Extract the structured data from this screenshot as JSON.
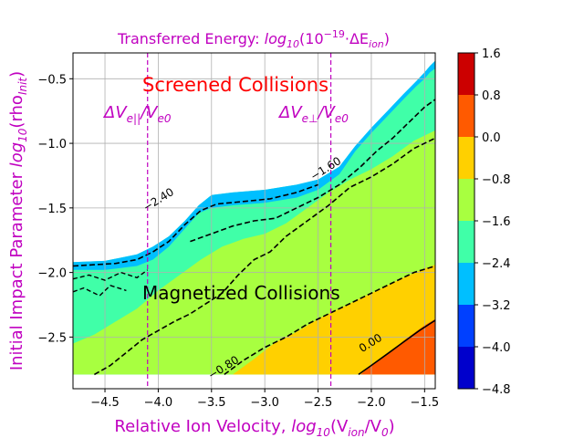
{
  "chart_data": {
    "type": "contour",
    "title": "Transferred Energy: log10(10^-19 · ΔE_ion)",
    "title_parts": {
      "prefix": "Transferred Energy: ",
      "main": "log",
      "sub": "10",
      "rest": "(10",
      "sup": "−19",
      "end": "·ΔE",
      "sub2": "ion",
      "close": ")"
    },
    "xlabel": {
      "prefix": "Relative Ion Velocity,  ",
      "main": "log",
      "sub": "10",
      "rest": "(V",
      "sub2": "ion",
      "mid": "/V",
      "sub3": "0",
      "close": ")"
    },
    "ylabel": {
      "prefix": "Initial Impact Parameter ",
      "main": "log",
      "sub": "10",
      "rest": "(rho",
      "sub2": "Init",
      "close": ")"
    },
    "xlim": [
      -4.8,
      -1.4
    ],
    "ylim": [
      -2.9,
      -0.3
    ],
    "xticks": [
      -4.5,
      -4.0,
      -3.5,
      -3.0,
      -2.5,
      -2.0,
      -1.5
    ],
    "xtick_labels": [
      "−4.5",
      "−4.0",
      "−3.5",
      "−3.0",
      "−2.5",
      "−2.0",
      "−1.5"
    ],
    "yticks": [
      -2.5,
      -2.0,
      -1.5,
      -1.0,
      -0.5
    ],
    "ytick_labels": [
      "−2.5",
      "−2.0",
      "−1.5",
      "−1.0",
      "−0.5"
    ],
    "grid": true,
    "vertical_lines": [
      -4.1,
      -2.38
    ],
    "annotations": {
      "screened": "Screened Collisions",
      "magnetized": "Magnetized Collisions",
      "dv_parallel": "ΔV",
      "dv_parallel_sub": "e||",
      "dv_parallel_rest": "/V",
      "dv_parallel_sub2": "e0",
      "dv_perp": "ΔV",
      "dv_perp_sub": "e⊥",
      "dv_perp_rest": "/V",
      "dv_perp_sub2": "e0"
    },
    "contour_labels": [
      {
        "text": "−2.40",
        "x": -3.98,
        "y": -1.46
      },
      {
        "text": "−0.80",
        "x": -3.37,
        "y": -2.76
      },
      {
        "text": "0.00",
        "x": -1.99,
        "y": -2.57
      },
      {
        "text": "−1.60",
        "x": -2.41,
        "y": -1.22
      }
    ],
    "colorbar": {
      "levels": [
        -4.8,
        -4.0,
        -3.2,
        -2.4,
        -1.6,
        -0.8,
        0.0,
        0.8,
        1.6
      ],
      "tick_labels": [
        "−4.8",
        "−4.0",
        "−3.2",
        "−2.4",
        "−1.6",
        "−0.8",
        "0.0",
        "0.8",
        "1.6"
      ],
      "colors": [
        "#0000cc",
        "#0040ff",
        "#00bfff",
        "#40ffa8",
        "#a8ff40",
        "#ffd000",
        "#ff5a00",
        "#cc0000"
      ]
    }
  }
}
